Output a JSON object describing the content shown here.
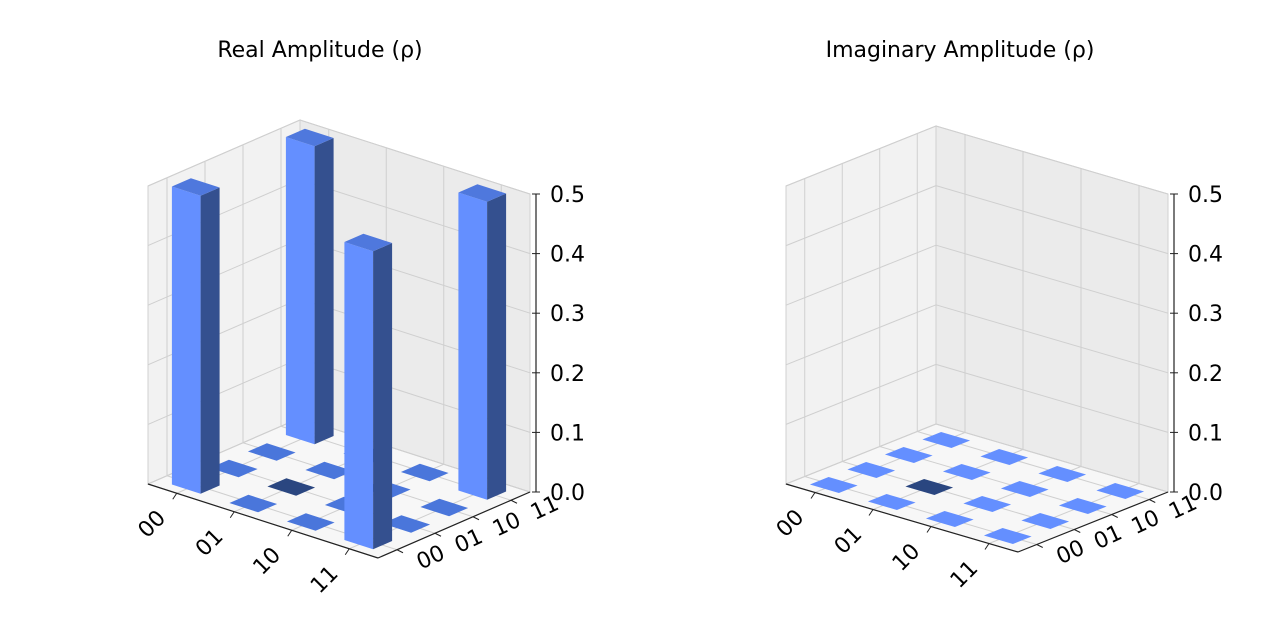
{
  "chart_data": [
    {
      "type": "bar3d",
      "title": "Real Amplitude (ρ)",
      "row_labels": [
        "00",
        "01",
        "10",
        "11"
      ],
      "col_labels": [
        "00",
        "01",
        "10",
        "11"
      ],
      "zlim": [
        0,
        0.5
      ],
      "zticks": [
        "0.0",
        "0.1",
        "0.2",
        "0.3",
        "0.4",
        "0.5"
      ],
      "values": [
        [
          0.5,
          0,
          0,
          0.5
        ],
        [
          0,
          0,
          0,
          0
        ],
        [
          0,
          0,
          0,
          0
        ],
        [
          0.5,
          0,
          0,
          0.5
        ]
      ],
      "bar_color": "#648fff",
      "dark_side_color": "#34508f",
      "highlight_cell_color": "#2a4680",
      "pane_color": "#f2f2f2",
      "grid": true
    },
    {
      "type": "bar3d",
      "title": "Imaginary Amplitude (ρ)",
      "row_labels": [
        "00",
        "01",
        "10",
        "11"
      ],
      "col_labels": [
        "00",
        "01",
        "10",
        "11"
      ],
      "zlim": [
        0,
        0.5
      ],
      "zticks": [
        "0.0",
        "0.1",
        "0.2",
        "0.3",
        "0.4",
        "0.5"
      ],
      "values": [
        [
          0,
          0,
          0,
          0
        ],
        [
          0,
          0,
          0,
          0
        ],
        [
          0,
          0,
          0,
          0
        ],
        [
          0,
          0,
          0,
          0
        ]
      ],
      "bar_color": "#648fff",
      "dark_side_color": "#34508f",
      "highlight_cell_color": "#2a4680",
      "pane_color": "#f2f2f2",
      "grid": true
    }
  ]
}
